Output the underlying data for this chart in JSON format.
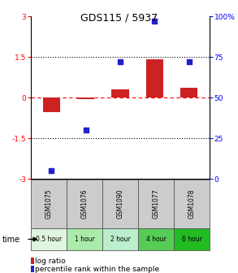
{
  "title": "GDS115 / 5937",
  "samples": [
    "GSM1075",
    "GSM1076",
    "GSM1090",
    "GSM1077",
    "GSM1078"
  ],
  "time_labels": [
    "0.5 hour",
    "1 hour",
    "2 hour",
    "4 hour",
    "6 hour"
  ],
  "time_colors": [
    "#dff5df",
    "#aaeaaa",
    "#bbeecc",
    "#55cc55",
    "#22bb22"
  ],
  "log_ratio": [
    -0.55,
    -0.05,
    0.3,
    1.4,
    0.35
  ],
  "percentile": [
    5,
    30,
    72,
    97,
    72
  ],
  "bar_color": "#cc2222",
  "dot_color": "#2222cc",
  "ylim_left": [
    -3,
    3
  ],
  "ylim_right": [
    0,
    100
  ],
  "yticks_left": [
    -3,
    -1.5,
    0,
    1.5,
    3
  ],
  "yticks_right": [
    0,
    25,
    50,
    75,
    100
  ],
  "ytick_labels_left": [
    "-3",
    "-1.5",
    "0",
    "1.5",
    "3"
  ],
  "ytick_labels_right": [
    "0",
    "25",
    "50",
    "75",
    "100%"
  ],
  "background_color": "#ffffff",
  "sample_box_color": "#cccccc",
  "legend_log_label": "log ratio",
  "legend_pct_label": "percentile rank within the sample",
  "time_text": "time"
}
